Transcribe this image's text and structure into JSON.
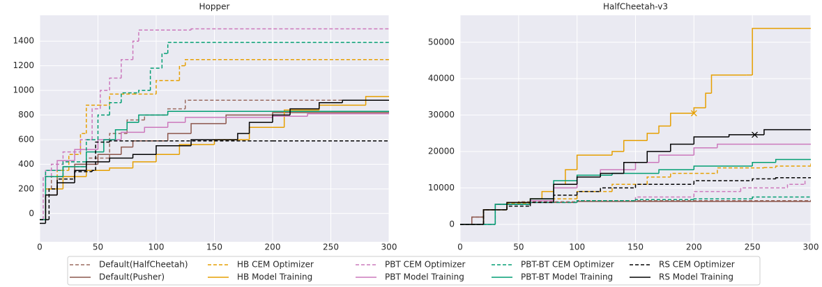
{
  "chart_data": [
    {
      "type": "line",
      "title": "Hopper",
      "drawstyle": "steps-post",
      "grid": true,
      "xlim": [
        0,
        300
      ],
      "ylim": [
        -230,
        1610
      ],
      "xticks": [
        0,
        50,
        100,
        150,
        200,
        250,
        300
      ],
      "yticks": [
        0,
        200,
        400,
        600,
        800,
        1000,
        1200,
        1400
      ],
      "series": [
        {
          "name": "Default(HalfCheetah)",
          "color": "#9a6a5e",
          "dash": true,
          "x": [
            0,
            5,
            10,
            20,
            40,
            60,
            75,
            90,
            110,
            125,
            300
          ],
          "values": [
            -50,
            200,
            300,
            380,
            450,
            650,
            760,
            800,
            850,
            920,
            920
          ]
        },
        {
          "name": "Default(Pusher)",
          "color": "#8c564b",
          "dash": false,
          "x": [
            0,
            5,
            15,
            30,
            50,
            70,
            80,
            110,
            130,
            160,
            200,
            300
          ],
          "values": [
            -50,
            150,
            300,
            400,
            480,
            540,
            590,
            650,
            730,
            800,
            820,
            830
          ]
        },
        {
          "name": "HB CEM Optimizer",
          "color": "#e69f00",
          "dash": true,
          "x": [
            0,
            5,
            15,
            25,
            35,
            40,
            50,
            60,
            80,
            100,
            120,
            125,
            300
          ],
          "values": [
            -50,
            200,
            350,
            480,
            650,
            880,
            880,
            970,
            970,
            1080,
            1200,
            1250,
            1250
          ]
        },
        {
          "name": "HB Model Training",
          "color": "#e69f00",
          "dash": false,
          "x": [
            0,
            5,
            20,
            40,
            60,
            80,
            100,
            120,
            150,
            180,
            210,
            240,
            280,
            300
          ],
          "values": [
            -50,
            200,
            300,
            350,
            370,
            420,
            480,
            560,
            600,
            700,
            840,
            880,
            950,
            950
          ]
        },
        {
          "name": "PBT CEM Optimizer",
          "color": "#cc78bc",
          "dash": true,
          "x": [
            0,
            3,
            10,
            20,
            35,
            45,
            52,
            60,
            70,
            80,
            85,
            130,
            300
          ],
          "values": [
            -50,
            300,
            400,
            500,
            600,
            850,
            1000,
            1100,
            1250,
            1400,
            1490,
            1500,
            1500
          ]
        },
        {
          "name": "PBT Model Training",
          "color": "#cc78bc",
          "dash": false,
          "x": [
            0,
            5,
            15,
            30,
            50,
            70,
            90,
            110,
            125,
            200,
            230,
            300
          ],
          "values": [
            -50,
            350,
            430,
            520,
            600,
            660,
            700,
            740,
            780,
            790,
            810,
            820
          ]
        },
        {
          "name": "PBT-BT CEM Optimizer",
          "color": "#029e73",
          "dash": true,
          "x": [
            0,
            5,
            20,
            40,
            50,
            60,
            70,
            85,
            95,
            105,
            110,
            300
          ],
          "values": [
            -50,
            350,
            420,
            600,
            800,
            900,
            980,
            1000,
            1180,
            1300,
            1390,
            1390
          ]
        },
        {
          "name": "PBT-BT Model Training",
          "color": "#029e73",
          "dash": false,
          "x": [
            0,
            5,
            20,
            40,
            55,
            65,
            75,
            85,
            110,
            300
          ],
          "values": [
            -50,
            300,
            380,
            500,
            600,
            680,
            740,
            800,
            830,
            830
          ]
        },
        {
          "name": "RS CEM Optimizer",
          "color": "#000000",
          "dash": true,
          "x": [
            0,
            8,
            15,
            30,
            45,
            48,
            60,
            200,
            300
          ],
          "values": [
            -50,
            200,
            280,
            340,
            350,
            580,
            590,
            590,
            590
          ]
        },
        {
          "name": "RS Model Training",
          "color": "#000000",
          "dash": false,
          "x": [
            0,
            5,
            15,
            30,
            40,
            60,
            80,
            100,
            130,
            170,
            180,
            200,
            215,
            240,
            260,
            300
          ],
          "values": [
            -80,
            150,
            250,
            350,
            420,
            450,
            480,
            550,
            600,
            650,
            740,
            800,
            850,
            900,
            920,
            920
          ]
        }
      ]
    },
    {
      "type": "line",
      "title": "HalfCheetah-v3",
      "drawstyle": "steps-post",
      "grid": true,
      "xlim": [
        0,
        300
      ],
      "ylim": [
        -4800,
        57400
      ],
      "xticks": [
        0,
        50,
        100,
        150,
        200,
        250,
        300
      ],
      "yticks": [
        0,
        10000,
        20000,
        30000,
        40000,
        50000
      ],
      "series": [
        {
          "color": "#9a6a5e",
          "dash": true,
          "x": [
            0,
            10,
            20,
            30,
            50,
            100,
            300
          ],
          "values": [
            0,
            2000,
            4000,
            5500,
            6200,
            6500,
            6700
          ]
        },
        {
          "color": "#8c564b",
          "dash": false,
          "x": [
            0,
            10,
            20,
            30,
            50,
            100,
            300
          ],
          "values": [
            0,
            2000,
            4000,
            5500,
            6000,
            6300,
            6600
          ]
        },
        {
          "color": "#e69f00",
          "dash": true,
          "x": [
            0,
            20,
            40,
            60,
            80,
            100,
            130,
            160,
            180,
            220,
            260,
            270,
            300
          ],
          "values": [
            0,
            4000,
            5800,
            6500,
            7000,
            9000,
            11000,
            13000,
            14000,
            15500,
            15600,
            16000,
            16700
          ]
        },
        {
          "color": "#e69f00",
          "dash": false,
          "x": [
            0,
            20,
            40,
            60,
            70,
            80,
            90,
            100,
            130,
            140,
            160,
            170,
            180,
            200,
            210,
            215,
            245,
            250,
            300
          ],
          "values": [
            0,
            4000,
            6000,
            7000,
            9000,
            11000,
            15000,
            19000,
            20000,
            23000,
            25000,
            27000,
            30500,
            32000,
            36000,
            41000,
            41000,
            53800,
            53800
          ],
          "marker": {
            "x": 200,
            "y": 30500
          }
        },
        {
          "color": "#cc78bc",
          "dash": true,
          "x": [
            0,
            30,
            60,
            100,
            150,
            200,
            240,
            280,
            295
          ],
          "values": [
            0,
            5500,
            6000,
            6500,
            7500,
            9000,
            10000,
            11000,
            12000
          ]
        },
        {
          "color": "#cc78bc",
          "dash": false,
          "x": [
            0,
            30,
            60,
            80,
            100,
            120,
            150,
            170,
            200,
            220,
            300
          ],
          "values": [
            0,
            5500,
            6500,
            10000,
            13000,
            15000,
            17000,
            19000,
            21000,
            22000,
            22000
          ]
        },
        {
          "color": "#029e73",
          "dash": true,
          "x": [
            0,
            30,
            60,
            100,
            150,
            200,
            250,
            300
          ],
          "values": [
            0,
            5500,
            6000,
            6500,
            6800,
            7000,
            7500,
            7500
          ]
        },
        {
          "color": "#029e73",
          "dash": false,
          "x": [
            0,
            30,
            60,
            80,
            100,
            130,
            170,
            200,
            250,
            270,
            300
          ],
          "values": [
            0,
            5500,
            7000,
            12000,
            13500,
            14000,
            15000,
            16000,
            17000,
            17800,
            17800
          ]
        },
        {
          "color": "#000000",
          "dash": true,
          "x": [
            0,
            20,
            40,
            60,
            80,
            100,
            120,
            150,
            200,
            250,
            270,
            300
          ],
          "values": [
            0,
            4000,
            5000,
            6000,
            8000,
            9000,
            10000,
            11000,
            12000,
            12500,
            12800,
            12800
          ]
        },
        {
          "color": "#000000",
          "dash": false,
          "x": [
            0,
            20,
            40,
            60,
            80,
            100,
            120,
            140,
            160,
            180,
            200,
            230,
            255,
            260,
            300
          ],
          "values": [
            0,
            4000,
            6000,
            7000,
            11000,
            13000,
            14000,
            17000,
            20000,
            22000,
            24000,
            24600,
            24600,
            26000,
            26000
          ],
          "marker": {
            "x": 252,
            "y": 24600
          }
        }
      ]
    }
  ]
}
